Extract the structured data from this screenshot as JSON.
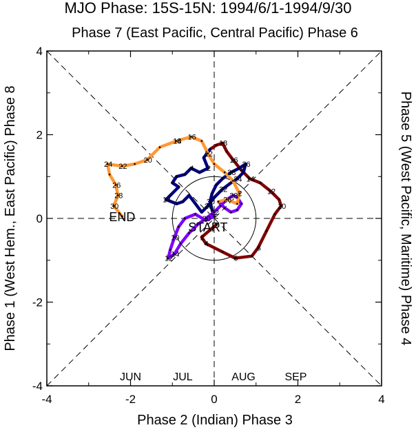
{
  "chart_data": {
    "type": "line",
    "title": "MJO Phase: 15S-15N: 1994/6/1-1994/9/30",
    "top_label": "Phase 7 (East Pacific, Central Pacific) Phase 6",
    "bottom_label": "Phase 2 (Indian) Phase 3",
    "left_label": "Phase 1 (West Hem., East Pacific) Phase 8",
    "right_label": "Phase 5 (West Pacific, Maritime) Phase 4",
    "xlim": [
      -4,
      4
    ],
    "ylim": [
      -4,
      4
    ],
    "xticks": [
      "-4",
      "-2",
      "0",
      "2",
      "4"
    ],
    "yticks": [
      "-4",
      "-2",
      "0",
      "2",
      "4"
    ],
    "unit_circle_radius": 1,
    "start_label": "START",
    "start_point": [
      -0.15,
      -0.2
    ],
    "end_label": "END",
    "end_point": [
      -2.2,
      0.05
    ],
    "series": [
      {
        "name": "JUN",
        "color": "#7f0000",
        "points": [
          [
            0.05,
            -0.15
          ],
          [
            -0.3,
            -0.45
          ],
          [
            -0.2,
            -0.6
          ],
          [
            0.2,
            -0.8
          ],
          [
            0.5,
            -0.95
          ],
          [
            0.9,
            -0.9
          ],
          [
            1.05,
            -0.7
          ],
          [
            1.25,
            -0.3
          ],
          [
            1.45,
            0.1
          ],
          [
            1.6,
            0.3
          ],
          [
            1.55,
            0.45
          ],
          [
            1.35,
            0.65
          ],
          [
            1.1,
            0.85
          ],
          [
            0.85,
            0.95
          ],
          [
            0.65,
            1.15
          ],
          [
            0.45,
            1.4
          ],
          [
            0.3,
            1.6
          ],
          [
            0.2,
            1.8
          ],
          [
            0.05,
            1.75
          ],
          [
            -0.1,
            1.65
          ]
        ],
        "labels": [
          {
            "text": "2",
            "i": 1
          },
          {
            "text": "4",
            "i": 2
          },
          {
            "text": "6",
            "i": 4
          },
          {
            "text": "8",
            "i": 6
          },
          {
            "text": "10",
            "i": 9
          },
          {
            "text": "12",
            "i": 11
          },
          {
            "text": "14",
            "i": 13
          },
          {
            "text": "16",
            "i": 15
          },
          {
            "text": "18",
            "i": 17
          }
        ]
      },
      {
        "name": "JUL",
        "color": "#00007f",
        "points": [
          [
            -0.1,
            1.65
          ],
          [
            -0.25,
            1.45
          ],
          [
            -0.15,
            1.2
          ],
          [
            -0.35,
            1.1
          ],
          [
            -0.55,
            1.2
          ],
          [
            -0.7,
            1.05
          ],
          [
            -0.9,
            1.0
          ],
          [
            -1.0,
            0.85
          ],
          [
            -0.85,
            0.75
          ],
          [
            -1.05,
            0.55
          ],
          [
            -1.15,
            0.45
          ],
          [
            -0.9,
            0.35
          ],
          [
            -0.75,
            0.4
          ],
          [
            -0.6,
            0.55
          ],
          [
            -0.45,
            0.35
          ],
          [
            -0.3,
            0.15
          ],
          [
            -0.15,
            0.3
          ],
          [
            0.0,
            0.5
          ],
          [
            0.2,
            0.7
          ],
          [
            0.4,
            0.85
          ],
          [
            0.55,
            0.95
          ],
          [
            0.7,
            1.1
          ],
          [
            0.75,
            1.3
          ],
          [
            0.6,
            1.2
          ],
          [
            0.4,
            1.1
          ],
          [
            0.2,
            0.95
          ],
          [
            0.05,
            0.8
          ],
          [
            -0.05,
            0.6
          ],
          [
            -0.1,
            0.4
          ],
          [
            -0.05,
            0.2
          ],
          [
            0.0,
            0.05
          ]
        ],
        "labels": [
          {
            "text": "2",
            "i": 2
          },
          {
            "text": "4",
            "i": 4
          },
          {
            "text": "14",
            "i": 10
          },
          {
            "text": "20",
            "i": 16
          },
          {
            "text": "22",
            "i": 18
          },
          {
            "text": "24",
            "i": 20
          },
          {
            "text": "26",
            "i": 22
          },
          {
            "text": "28",
            "i": 24
          },
          {
            "text": "30",
            "i": 28
          }
        ]
      },
      {
        "name": "AUG",
        "color": "#7f00ff",
        "points": [
          [
            0.0,
            0.05
          ],
          [
            -0.2,
            -0.05
          ],
          [
            -0.45,
            0.1
          ],
          [
            -0.7,
            0.0
          ],
          [
            -0.85,
            -0.2
          ],
          [
            -0.95,
            -0.45
          ],
          [
            -1.05,
            -0.75
          ],
          [
            -1.1,
            -0.95
          ],
          [
            -0.95,
            -0.85
          ],
          [
            -0.8,
            -0.6
          ],
          [
            -0.6,
            -0.35
          ],
          [
            -0.4,
            -0.15
          ],
          [
            -0.2,
            0.0
          ],
          [
            0.0,
            0.15
          ],
          [
            0.15,
            0.3
          ],
          [
            0.3,
            0.45
          ],
          [
            0.45,
            0.55
          ],
          [
            0.55,
            0.5
          ],
          [
            0.65,
            0.35
          ],
          [
            0.55,
            0.2
          ],
          [
            0.4,
            0.15
          ],
          [
            0.25,
            0.25
          ],
          [
            0.1,
            0.4
          ]
        ],
        "labels": [
          {
            "text": "10",
            "i": 5
          },
          {
            "text": "12",
            "i": 7
          },
          {
            "text": "14",
            "i": 8
          },
          {
            "text": "20",
            "i": 12
          },
          {
            "text": "22",
            "i": 13
          },
          {
            "text": "26",
            "i": 15
          },
          {
            "text": "28",
            "i": 16
          }
        ]
      },
      {
        "name": "SEP",
        "color": "#ff9933",
        "points": [
          [
            0.1,
            0.4
          ],
          [
            0.3,
            0.45
          ],
          [
            0.55,
            0.35
          ],
          [
            0.6,
            0.6
          ],
          [
            0.45,
            0.9
          ],
          [
            0.25,
            1.1
          ],
          [
            0.0,
            1.3
          ],
          [
            -0.15,
            1.55
          ],
          [
            -0.3,
            1.85
          ],
          [
            -0.55,
            1.95
          ],
          [
            -0.9,
            1.85
          ],
          [
            -1.3,
            1.7
          ],
          [
            -1.6,
            1.4
          ],
          [
            -1.9,
            1.3
          ],
          [
            -2.2,
            1.25
          ],
          [
            -2.55,
            1.3
          ],
          [
            -2.5,
            1.05
          ],
          [
            -2.35,
            0.8
          ],
          [
            -2.3,
            0.55
          ],
          [
            -2.4,
            0.3
          ],
          [
            -2.2,
            0.05
          ]
        ],
        "labels": [
          {
            "text": "2",
            "i": 3
          },
          {
            "text": "12",
            "i": 7
          },
          {
            "text": "16",
            "i": 9
          },
          {
            "text": "14",
            "i": 10
          },
          {
            "text": "18",
            "i": 10
          },
          {
            "text": "20",
            "i": 12
          },
          {
            "text": "22",
            "i": 14
          },
          {
            "text": "24",
            "i": 15
          },
          {
            "text": "26",
            "i": 17
          },
          {
            "text": "28",
            "i": 18
          },
          {
            "text": "30",
            "i": 19
          }
        ]
      }
    ],
    "legend": [
      "JUN",
      "JUL",
      "AUG",
      "SEP"
    ]
  }
}
